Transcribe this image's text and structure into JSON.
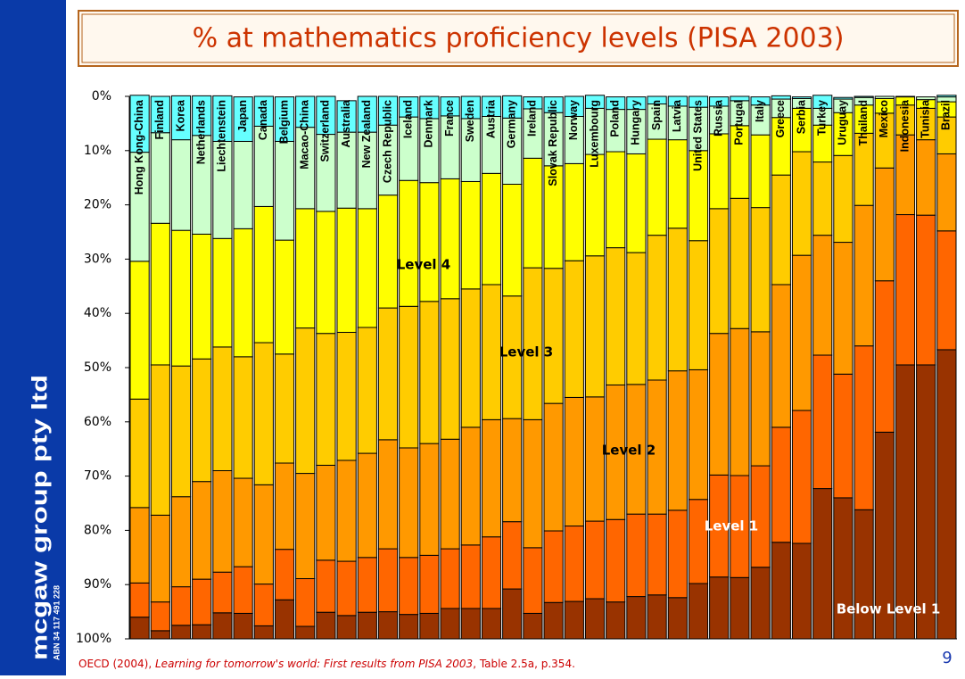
{
  "slide": {
    "side_text": "mcgaw group pty ltd",
    "side_subtext": "ABN 34 117 491 228",
    "source_prefix": "OECD (2004), ",
    "source_title": "Learning for tomorrow's world: First results from PISA 2003",
    "source_suffix": ", Table 2.5a, p.354.",
    "page_number": "9"
  },
  "chart_data": {
    "type": "stacked_bar",
    "title": "% at mathematics proficiency levels (PISA 2003)",
    "y_inverted": true,
    "ylim": [
      0,
      100
    ],
    "yticks": [
      {
        "value": 0,
        "label": "0%"
      },
      {
        "value": 10,
        "label": "10%"
      },
      {
        "value": 20,
        "label": "20%"
      },
      {
        "value": 30,
        "label": "30%"
      },
      {
        "value": 40,
        "label": "40%"
      },
      {
        "value": 50,
        "label": "50%"
      },
      {
        "value": 60,
        "label": "60%"
      },
      {
        "value": 70,
        "label": "70%"
      },
      {
        "value": 80,
        "label": "80%"
      },
      {
        "value": 90,
        "label": "90%"
      },
      {
        "value": 100,
        "label": "100%"
      }
    ],
    "categories": [
      "Hong Kong-China",
      "Finland",
      "Korea",
      "Netherlands",
      "Liechtenstein",
      "Japan",
      "Canada",
      "Belgium",
      "Macao-China",
      "Switzerland",
      "Australia",
      "New Zealand",
      "Czech Republic",
      "Iceland",
      "Denmark",
      "France",
      "Sweden",
      "Austria",
      "Germany",
      "Ireland",
      "Slovak Republic",
      "Norway",
      "Luxembourg",
      "Poland",
      "Hungary",
      "Spain",
      "Latvia",
      "United States",
      "Russia",
      "Portugal",
      "Italy",
      "Greece",
      "Serbia",
      "Turkey",
      "Uruguay",
      "Thailand",
      "Mexico",
      "Indonesia",
      "Tunisia",
      "Brazil"
    ],
    "series": [
      {
        "name": "Below Level 1",
        "color": "#993300",
        "label_color": "#ffffff",
        "values": [
          4.0,
          1.5,
          2.5,
          2.6,
          4.8,
          4.7,
          2.4,
          7.2,
          2.3,
          4.9,
          4.3,
          4.9,
          5.0,
          4.5,
          4.7,
          5.6,
          5.6,
          5.6,
          9.2,
          4.7,
          6.7,
          6.9,
          7.4,
          6.8,
          7.8,
          8.1,
          7.6,
          10.2,
          11.4,
          11.3,
          13.2,
          17.8,
          17.6,
          27.7,
          26.0,
          23.8,
          38.1,
          50.5,
          50.5,
          53.3
        ]
      },
      {
        "name": "Level 1",
        "color": "#ff6600",
        "label_color": "#ffffff",
        "values": [
          6.3,
          5.3,
          7.1,
          8.4,
          7.5,
          8.6,
          7.7,
          9.3,
          8.8,
          9.6,
          10.0,
          10.1,
          11.6,
          10.5,
          10.7,
          11.0,
          11.7,
          13.2,
          12.4,
          12.1,
          13.2,
          13.9,
          14.3,
          15.2,
          15.2,
          14.9,
          16.1,
          15.5,
          18.8,
          18.8,
          18.7,
          21.2,
          24.5,
          24.6,
          22.8,
          30.2,
          27.9,
          27.7,
          27.6,
          21.9
        ]
      },
      {
        "name": "Level 2",
        "color": "#ff9900",
        "label_color": "#000000",
        "values": [
          13.9,
          16.0,
          16.6,
          18.0,
          18.7,
          16.3,
          18.3,
          15.9,
          19.4,
          17.5,
          18.6,
          19.2,
          20.1,
          20.2,
          20.6,
          20.2,
          21.7,
          21.6,
          19.0,
          23.6,
          23.5,
          23.7,
          22.9,
          24.8,
          23.9,
          24.7,
          25.7,
          23.9,
          26.1,
          27.1,
          24.7,
          26.3,
          28.6,
          22.1,
          24.3,
          25.9,
          20.8,
          14.7,
          13.9,
          14.2
        ]
      },
      {
        "name": "Level 3",
        "color": "#ffcc00",
        "label_color": "#000000",
        "values": [
          20.0,
          27.7,
          24.1,
          22.6,
          22.8,
          22.4,
          26.2,
          20.1,
          26.8,
          24.3,
          23.6,
          23.2,
          24.3,
          26.1,
          26.2,
          25.9,
          25.5,
          24.9,
          22.6,
          28.0,
          24.9,
          25.2,
          26.0,
          25.3,
          24.3,
          26.7,
          26.3,
          23.8,
          23.0,
          24.0,
          22.9,
          20.2,
          19.1,
          13.5,
          16.0,
          13.3,
          10.1,
          5.5,
          5.8,
          6.8
        ]
      },
      {
        "name": "Level 4",
        "color": "#ffff00",
        "label_color": "#000000",
        "values": [
          25.4,
          26.1,
          25.0,
          23.0,
          20.0,
          23.6,
          25.1,
          21.0,
          22.0,
          22.5,
          22.9,
          21.9,
          20.8,
          23.2,
          21.9,
          22.1,
          19.8,
          20.5,
          20.6,
          20.2,
          18.9,
          17.9,
          18.7,
          17.7,
          18.2,
          17.7,
          16.3,
          16.6,
          13.8,
          13.4,
          13.4,
          10.6,
          8.0,
          6.8,
          7.9,
          5.2,
          2.7,
          1.5,
          1.6,
          2.8
        ]
      },
      {
        "color": "#ccffcc",
        "values": [
          20.1,
          16.7,
          16.7,
          18.2,
          17.9,
          16.1,
          14.8,
          18.2,
          15.0,
          14.2,
          14.0,
          14.1,
          12.9,
          11.7,
          11.8,
          11.6,
          11.6,
          10.5,
          12.2,
          9.1,
          9.8,
          8.7,
          8.5,
          7.8,
          8.2,
          6.5,
          6.2,
          8.0,
          5.1,
          4.6,
          5.5,
          3.4,
          1.8,
          3.1,
          2.5,
          1.4,
          0.4,
          0.1,
          0.5,
          0.9
        ]
      },
      {
        "color": "#66ffff",
        "values": [
          10.5,
          6.7,
          8.1,
          7.3,
          8.4,
          8.2,
          5.5,
          8.2,
          5.7,
          7.0,
          5.8,
          6.6,
          5.3,
          3.7,
          4.1,
          3.5,
          4.1,
          3.7,
          4.1,
          2.2,
          2.9,
          3.7,
          2.4,
          2.3,
          2.3,
          1.4,
          1.8,
          2.0,
          1.7,
          0.8,
          1.5,
          0.6,
          0.3,
          2.4,
          0.3,
          0.2,
          0.0,
          0.0,
          0.0,
          0.3
        ]
      }
    ]
  }
}
